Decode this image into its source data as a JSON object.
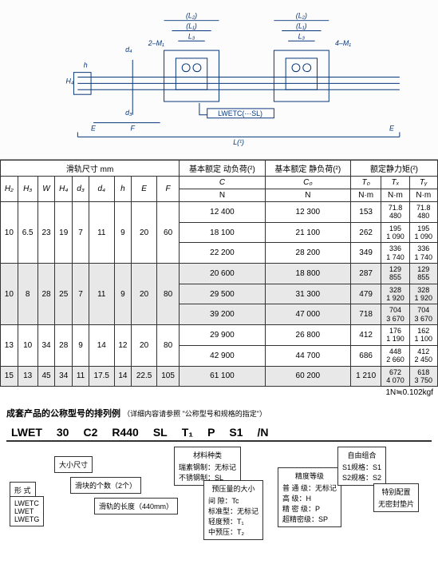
{
  "diagram": {
    "labels": [
      "(L₂)",
      "(L₂)",
      "(L₁)",
      "(L₁)",
      "L₃",
      "L₃",
      "2‒M₁",
      "4‒M₁",
      "d₄",
      "H₄",
      "h",
      "d₃",
      "E",
      "F",
      "E",
      "L(¹)",
      "LWETC(⋯SL)"
    ]
  },
  "table": {
    "head": {
      "rail": "滑轨尺寸 mm",
      "c": "基本额定 动负荷(²)",
      "c0": "基本额定 静负荷(²)",
      "moment": "额定静力矩(²)",
      "H2": "H₂",
      "H3": "H₃",
      "W": "W",
      "H4": "H₄",
      "d3": "d₃",
      "d4": "d₄",
      "h": "h",
      "E": "E",
      "F": "F",
      "C": "C",
      "C0": "C₀",
      "T0": "T₀",
      "Tx": "Tₓ",
      "Ty": "Tᵧ",
      "N": "N",
      "Nm": "N·m"
    },
    "groups": [
      {
        "shade": false,
        "span": [
          "10",
          "6.5",
          "23",
          "19",
          "7",
          "11",
          "9",
          "20",
          "60"
        ],
        "rows": [
          {
            "C": "12 400",
            "C0": "12 300",
            "T0": "153",
            "Tx": [
              "71.8",
              "480"
            ],
            "Ty": [
              "71.8",
              "480"
            ]
          },
          {
            "C": "18 100",
            "C0": "21 100",
            "T0": "262",
            "Tx": [
              "195",
              "1 090"
            ],
            "Ty": [
              "195",
              "1 090"
            ]
          },
          {
            "C": "22 200",
            "C0": "28 200",
            "T0": "349",
            "Tx": [
              "336",
              "1 740"
            ],
            "Ty": [
              "336",
              "1 740"
            ]
          }
        ]
      },
      {
        "shade": true,
        "span": [
          "10",
          "8",
          "28",
          "25",
          "7",
          "11",
          "9",
          "20",
          "80"
        ],
        "rows": [
          {
            "C": "20 600",
            "C0": "18 800",
            "T0": "287",
            "Tx": [
              "129",
              "855"
            ],
            "Ty": [
              "129",
              "855"
            ]
          },
          {
            "C": "29 500",
            "C0": "31 300",
            "T0": "479",
            "Tx": [
              "328",
              "1 920"
            ],
            "Ty": [
              "328",
              "1 920"
            ]
          },
          {
            "C": "39 200",
            "C0": "47 000",
            "T0": "718",
            "Tx": [
              "704",
              "3 670"
            ],
            "Ty": [
              "704",
              "3 670"
            ]
          }
        ]
      },
      {
        "shade": false,
        "span": [
          "13",
          "10",
          "34",
          "28",
          "9",
          "14",
          "12",
          "20",
          "80"
        ],
        "rows": [
          {
            "C": "29 900",
            "C0": "26 800",
            "T0": "412",
            "Tx": [
              "176",
              "1 190"
            ],
            "Ty": [
              "162",
              "1 100"
            ]
          },
          {
            "C": "42 900",
            "C0": "44 700",
            "T0": "686",
            "Tx": [
              "448",
              "2 660"
            ],
            "Ty": [
              "412",
              "2 450"
            ]
          }
        ]
      },
      {
        "shade": true,
        "span": [
          "15",
          "13",
          "45",
          "34",
          "11",
          "17.5",
          "14",
          "22.5",
          "105"
        ],
        "rows": [
          {
            "C": "61 100",
            "C0": "60 200",
            "T0": "1 210",
            "Tx": [
              "672",
              "4 070"
            ],
            "Ty": [
              "618",
              "3 750"
            ]
          }
        ]
      }
    ],
    "footnote": "1N≒0.102kgf"
  },
  "ordering": {
    "title": "成套产品的公称型号的排列例",
    "title_note": "（详细内容请参照 \"公称型号和规格的指定\"）",
    "parts": [
      "LWET",
      "30",
      "C2",
      "R440",
      "SL",
      "T₁",
      "P",
      "S1",
      "/N"
    ],
    "boxes": {
      "form": {
        "hd": "形 式",
        "body": [
          "LWETC",
          "LWET",
          "LWETG"
        ]
      },
      "size": {
        "hd": "大小尺寸"
      },
      "count": {
        "hd": "滑块的个数（2个）"
      },
      "length": {
        "hd": "滑轨的长度（440mm）"
      },
      "material": {
        "hd": "材料种类",
        "body": [
          "瑞素钢制：无标记",
          "不锈钢制：SL"
        ]
      },
      "preload": {
        "hd": "预压量的大小",
        "body": [
          "间 隙：Tc",
          "标准型：无标记",
          "轻度预：T₁",
          "中预压：T₂"
        ]
      },
      "precision": {
        "hd": "精度等级",
        "body": [
          "普 通 级：无标记",
          "高    级：H",
          "精 密 级：P",
          "超精密级：SP"
        ]
      },
      "combo": {
        "hd": "自由组合",
        "body": [
          "S1规格：S1",
          "S2规格：S2"
        ]
      },
      "special": {
        "hd": "特别配置",
        "body": [
          "无密封垫片"
        ]
      }
    }
  }
}
